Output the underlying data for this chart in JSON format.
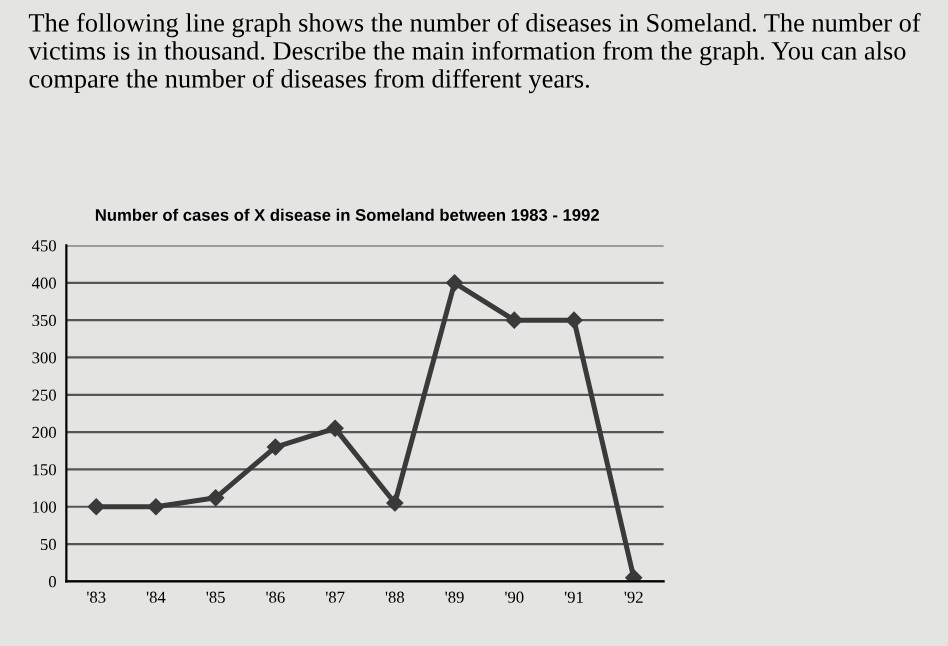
{
  "chart_data": {
    "type": "line",
    "title": "The following line graph shows the number of diseases in Someland. The number of victims is in thousand. Describe the main information from the graph. You can also compare the number of diseases from different years.",
    "subtitle": "Number of cases of X disease in Someland between 1983 - 1992",
    "categories": [
      "'83",
      "'84",
      "'85",
      "'86",
      "'87",
      "'88",
      "'89",
      "'90",
      "'91",
      "'92"
    ],
    "series": [
      {
        "color": "#3a3a3a",
        "values": [
          100,
          100,
          112,
          180,
          205,
          105,
          400,
          350,
          350,
          5
        ]
      }
    ],
    "ylim": [
      0,
      450
    ],
    "yticks": [
      0,
      50,
      100,
      150,
      200,
      250,
      300,
      350,
      400,
      450
    ],
    "grid": "y",
    "marker": "diamond",
    "line_style": "solid"
  }
}
